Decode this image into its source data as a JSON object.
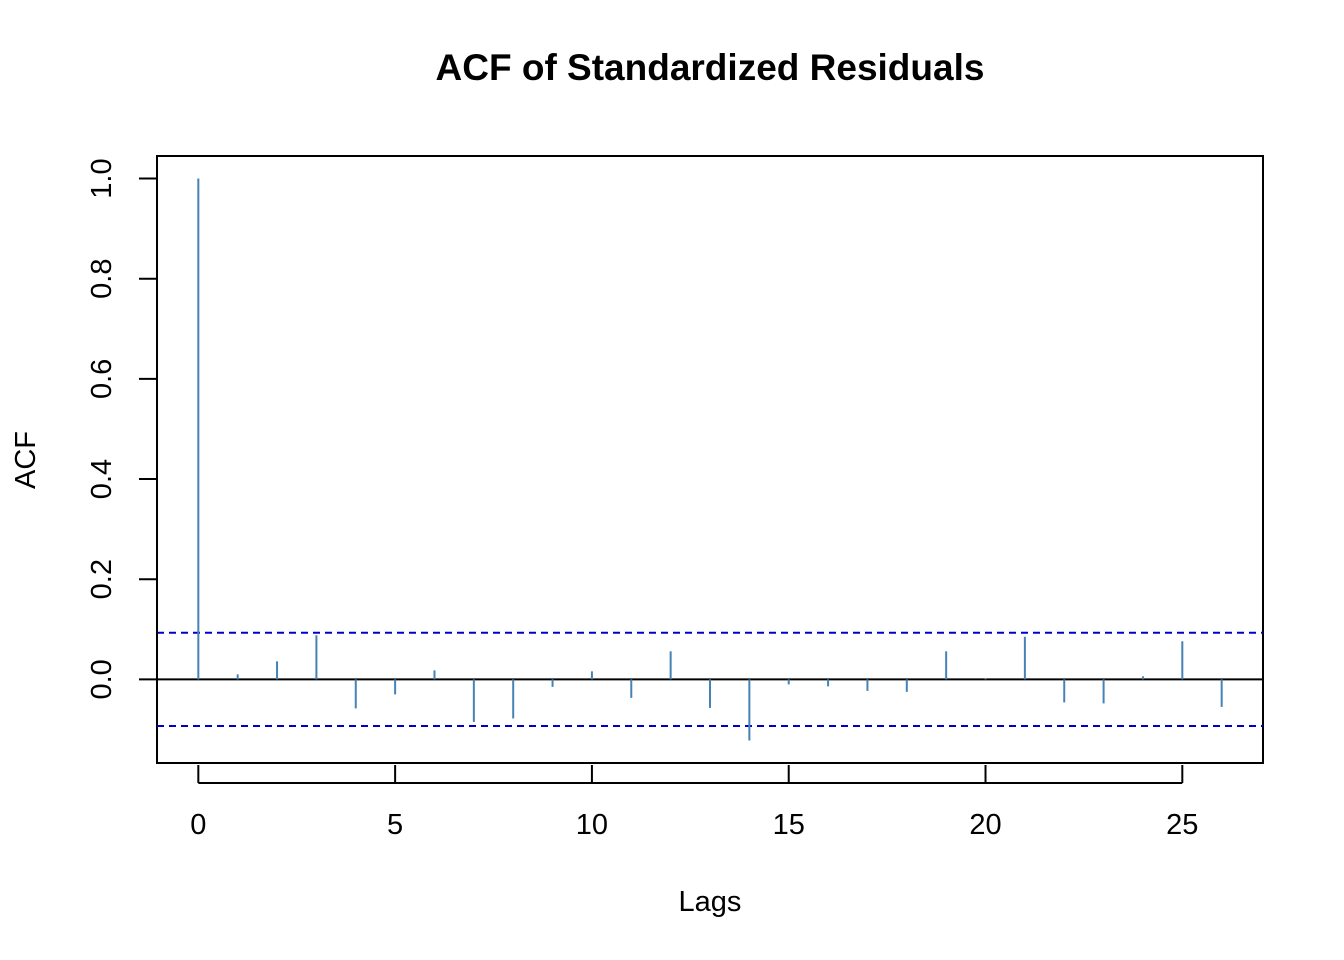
{
  "chart_data": {
    "type": "bar",
    "title": "ACF of Standardized Residuals",
    "xlabel": "Lags",
    "ylabel": "ACF",
    "x": [
      0,
      1,
      2,
      3,
      4,
      5,
      6,
      7,
      8,
      9,
      10,
      11,
      12,
      13,
      14,
      15,
      16,
      17,
      18,
      19,
      20,
      21,
      22,
      23,
      24,
      25,
      26
    ],
    "values": [
      1.0,
      0.01,
      0.036,
      0.088,
      -0.058,
      -0.03,
      0.018,
      -0.085,
      -0.078,
      -0.015,
      0.016,
      -0.037,
      0.056,
      -0.057,
      -0.122,
      -0.01,
      -0.014,
      -0.023,
      -0.025,
      0.056,
      0.002,
      0.085,
      -0.046,
      -0.048,
      0.006,
      0.076,
      -0.055
    ],
    "confidence_bounds": [
      0.093,
      -0.093
    ],
    "xlim": [
      -1.05,
      27.05
    ],
    "ylim": [
      -0.167,
      1.045
    ],
    "xticks": [
      0,
      5,
      10,
      15,
      20,
      25
    ],
    "yticks": [
      0.0,
      0.2,
      0.4,
      0.6,
      0.8,
      1.0
    ],
    "xtick_labels": [
      "0",
      "5",
      "10",
      "15",
      "20",
      "25"
    ],
    "ytick_labels": [
      "0.0",
      "0.2",
      "0.4",
      "0.6",
      "0.8",
      "1.0"
    ],
    "grid": false,
    "colors": {
      "bars": "#4682B4",
      "bounds": "#0000CD",
      "zero_line": "#000000",
      "axes": "#000000"
    }
  }
}
